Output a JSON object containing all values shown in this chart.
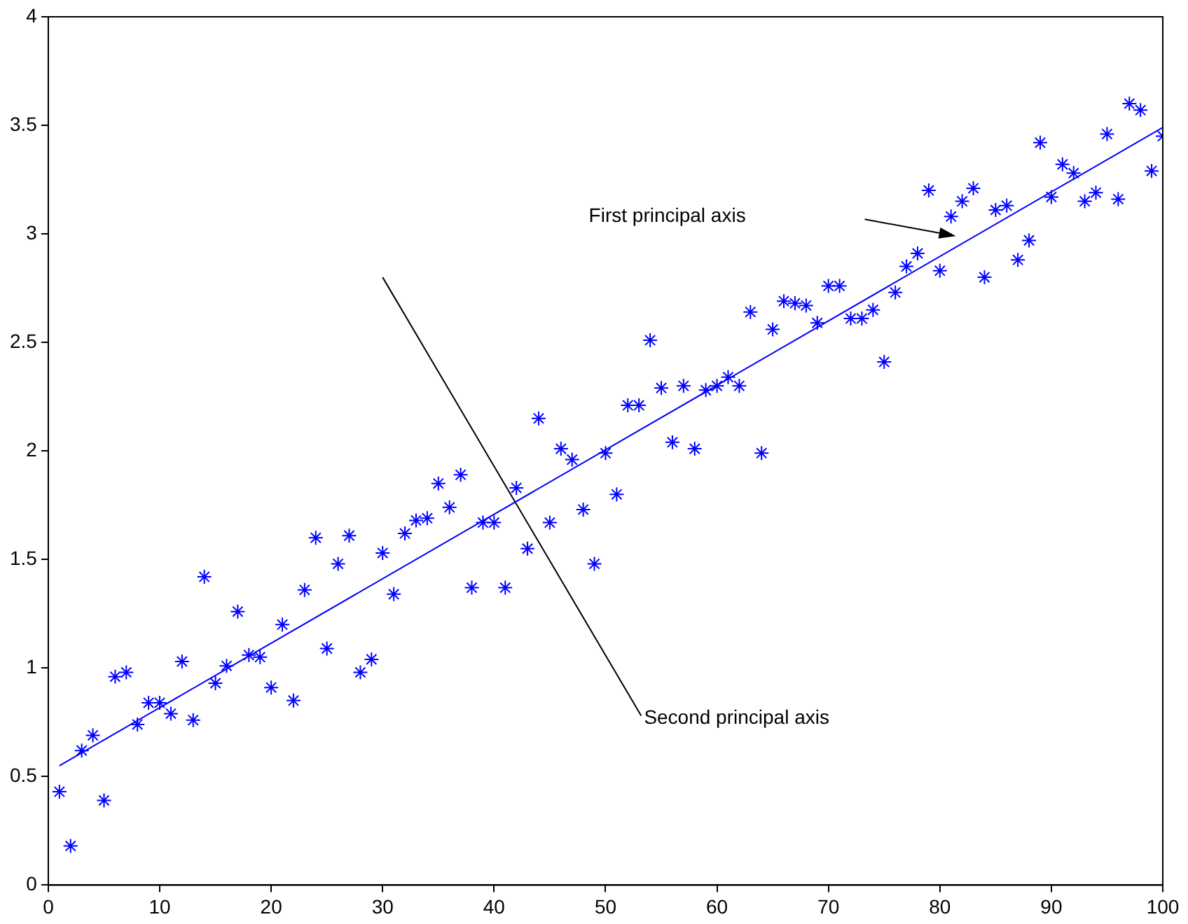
{
  "chart_data": {
    "type": "scatter",
    "marker": "cross",
    "grid": false,
    "legend": false,
    "xlim": [
      0,
      100
    ],
    "xticks": [
      0,
      10,
      20,
      30,
      40,
      50,
      60,
      70,
      80,
      90,
      100
    ],
    "ylim": [
      0,
      4
    ],
    "yticks": [
      0,
      0.5,
      1,
      1.5,
      2,
      2.5,
      3,
      3.5,
      4
    ],
    "series": [
      {
        "color": "#0000ff",
        "x": [
          1,
          2,
          3,
          4,
          5,
          6,
          7,
          8,
          9,
          10,
          11,
          12,
          13,
          14,
          15,
          16,
          17,
          18,
          19,
          20,
          21,
          22,
          23,
          24,
          25,
          26,
          27,
          28,
          29,
          30,
          31,
          32,
          33,
          34,
          35,
          36,
          37,
          38,
          39,
          40,
          41,
          42,
          43,
          44,
          45,
          46,
          47,
          48,
          49,
          50,
          51,
          52,
          53,
          54,
          55,
          56,
          57,
          58,
          59,
          60,
          61,
          62,
          63,
          64,
          65,
          66,
          67,
          68,
          69,
          70,
          71,
          72,
          73,
          74,
          75,
          76,
          77,
          78,
          79,
          80,
          81,
          82,
          83,
          84,
          85,
          86,
          87,
          88,
          89,
          90,
          91,
          92,
          93,
          94,
          95,
          96,
          97,
          98,
          99,
          100
        ],
        "values": [
          0.43,
          0.18,
          0.62,
          0.69,
          0.39,
          0.96,
          0.98,
          0.74,
          0.84,
          0.84,
          0.79,
          1.03,
          0.76,
          1.42,
          0.93,
          1.01,
          1.26,
          1.06,
          1.05,
          0.91,
          1.2,
          0.85,
          1.36,
          1.6,
          1.09,
          1.48,
          1.61,
          0.98,
          1.04,
          1.53,
          1.34,
          1.62,
          1.68,
          1.69,
          1.85,
          1.74,
          1.89,
          1.37,
          1.67,
          1.67,
          1.37,
          1.83,
          1.55,
          2.15,
          1.67,
          2.01,
          1.96,
          1.73,
          1.48,
          1.99,
          1.8,
          2.21,
          2.21,
          2.51,
          2.29,
          2.04,
          2.3,
          2.01,
          2.28,
          2.3,
          2.34,
          2.3,
          2.64,
          1.99,
          2.56,
          2.69,
          2.68,
          2.67,
          2.59,
          2.76,
          2.76,
          2.61,
          2.61,
          2.65,
          2.41,
          2.73,
          2.85,
          2.91,
          3.2,
          2.83,
          3.08,
          3.15,
          3.21,
          2.8,
          3.11,
          3.13,
          2.88,
          2.97,
          3.42,
          3.17,
          3.32,
          3.28,
          3.15,
          3.19,
          3.46,
          3.16,
          3.6,
          3.57,
          3.29,
          3.45
        ]
      },
      {
        "type": "line",
        "color": "#0000ff",
        "marker": "none",
        "line_style": "solid",
        "x": [
          1,
          100
        ],
        "values": [
          0.55,
          3.49
        ]
      },
      {
        "type": "line",
        "color": "#000000",
        "marker": "none",
        "line_style": "solid",
        "x": [
          30,
          53.2
        ],
        "values": [
          2.8,
          0.78
        ]
      }
    ],
    "annotations": [
      "First principal axis",
      {
        "text": "Second principal axis",
        "x": 53.2,
        "y": 0.78
      }
    ]
  }
}
